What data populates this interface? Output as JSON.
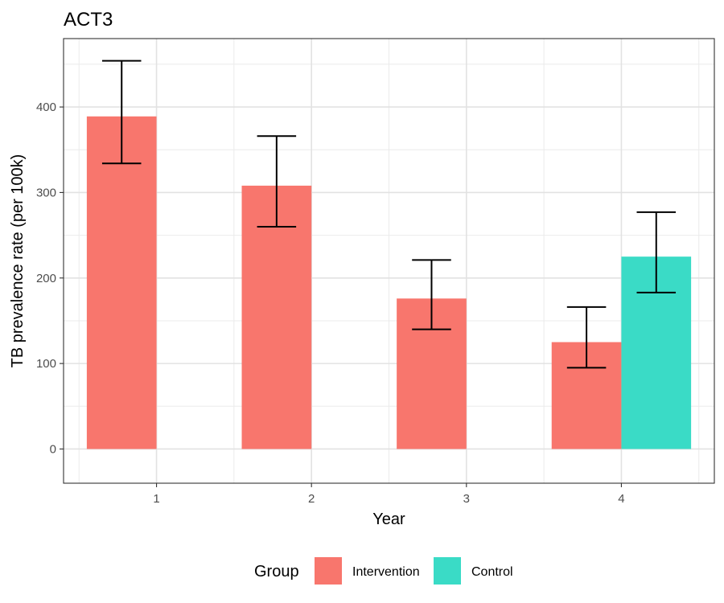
{
  "chart_data": {
    "type": "bar",
    "title": "ACT3",
    "xlabel": "Year",
    "ylabel": "TB prevalence rate (per 100k)",
    "categories": [
      "1",
      "2",
      "3",
      "4"
    ],
    "ylim": [
      -40,
      480
    ],
    "yticks": [
      0,
      100,
      200,
      300,
      400
    ],
    "grid": true,
    "legend": {
      "title": "Group",
      "position": "bottom"
    },
    "series": [
      {
        "name": "Intervention",
        "color": "#F8766D",
        "values": [
          389,
          308,
          176,
          125
        ],
        "error_low": [
          334,
          260,
          140,
          95
        ],
        "error_high": [
          454,
          366,
          221,
          166
        ]
      },
      {
        "name": "Control",
        "color": "#3ADBC6",
        "values": [
          null,
          null,
          null,
          225
        ],
        "error_low": [
          null,
          null,
          null,
          183
        ],
        "error_high": [
          null,
          null,
          null,
          277
        ]
      }
    ]
  }
}
